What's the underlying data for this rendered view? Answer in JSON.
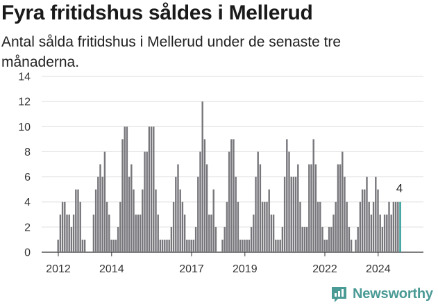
{
  "title": "Fyra fritidshus såldes i Mellerud",
  "subtitle": "Antal sålda fritidshus i Mellerud under de senaste tre månaderna.",
  "brand": {
    "name": "Newsworthy",
    "icon": "newsworthy-logo-icon",
    "color": "#4a9a95"
  },
  "chart_data": {
    "type": "bar",
    "title": "Fyra fritidshus såldes i Mellerud",
    "subtitle": "Antal sålda fritidshus i Mellerud under de senaste tre månaderna.",
    "xlabel": "",
    "ylabel": "",
    "ylim": [
      0,
      14
    ],
    "y_ticks": [
      0,
      2,
      4,
      6,
      8,
      10,
      12,
      14
    ],
    "x_tick_labels": [
      "2012",
      "2014",
      "2017",
      "2019",
      "2022",
      "2024"
    ],
    "grid": true,
    "bar_color": "#77767b",
    "highlight_color": "#2a9a94",
    "highlight_label": "4",
    "series": [
      {
        "values": [
          1,
          3,
          4,
          4,
          3,
          3,
          2,
          3,
          5,
          5,
          4,
          1,
          1,
          0,
          0,
          0,
          3,
          5,
          6,
          7,
          6,
          8,
          4,
          3,
          1,
          1,
          1,
          2,
          4,
          9,
          10,
          10,
          6,
          7,
          5,
          3,
          3,
          3,
          5,
          8,
          8,
          10,
          10,
          10,
          5,
          3,
          1,
          1,
          1,
          1,
          1,
          2,
          4,
          6,
          7,
          5,
          4,
          3,
          1,
          1,
          1,
          1,
          2,
          6,
          8,
          12,
          9,
          7,
          3,
          3,
          5,
          2,
          0,
          0,
          1,
          2,
          4,
          8,
          9,
          9,
          6,
          4,
          1,
          1,
          1,
          1,
          1,
          2,
          3,
          6,
          8,
          7,
          4,
          4,
          4,
          5,
          3,
          3,
          1,
          1,
          1,
          2,
          6,
          9,
          8,
          6,
          6,
          6,
          7,
          4,
          2,
          2,
          2,
          7,
          7,
          9,
          7,
          4,
          4,
          2,
          1,
          1,
          2,
          2,
          3,
          4,
          7,
          7,
          8,
          6,
          4,
          2,
          1,
          0,
          1,
          2,
          4,
          5,
          5,
          6,
          4,
          3,
          4,
          6,
          5,
          3,
          2,
          3,
          3,
          4,
          3,
          4,
          4,
          4,
          4
        ]
      }
    ]
  }
}
